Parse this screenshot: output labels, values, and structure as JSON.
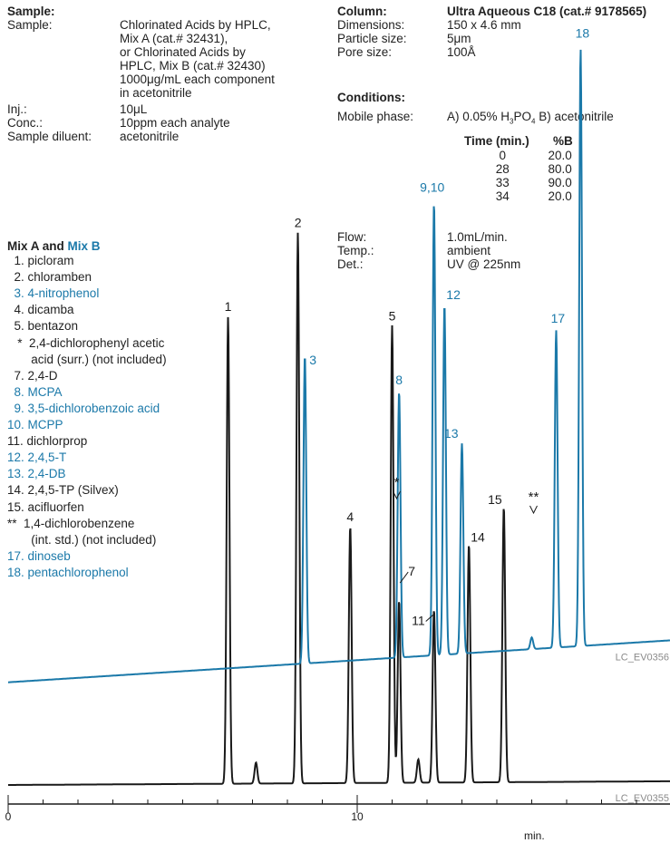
{
  "colors": {
    "mixA": "#1a1a1a",
    "mixB": "#1b79a9"
  },
  "sample": {
    "heading": "Sample:",
    "rows": [
      {
        "label": "Sample:",
        "value": "Chlorinated Acids by HPLC,\nMix A (cat.# 32431),\nor Chlorinated Acids by\nHPLC, Mix B (cat.# 32430)\n1000μg/mL each component\nin acetonitrile"
      },
      {
        "label": "Inj.:",
        "value": "10μL"
      },
      {
        "label": "Conc.:",
        "value": "10ppm each analyte"
      },
      {
        "label": "Sample diluent:",
        "value": "acetonitrile"
      }
    ]
  },
  "column": {
    "heading": "Column:",
    "name": "Ultra Aqueous C18 (cat.# 9178565)",
    "rows": [
      {
        "label": "Dimensions:",
        "value": "150 x 4.6 mm"
      },
      {
        "label": "Particle size:",
        "value": "5μm"
      },
      {
        "label": "Pore size:",
        "value": "100Å"
      }
    ]
  },
  "conditions": {
    "heading": "Conditions:",
    "mobile_phase_label": "Mobile phase:",
    "mobile_phase_value_a": "A) 0.05% H",
    "mobile_phase_sub1": "3",
    "mobile_phase_value_b": "PO",
    "mobile_phase_sub2": "4",
    "mobile_phase_value_c": " B) acetonitrile",
    "gradient_headers": [
      "Time (min.)",
      "%B"
    ],
    "gradient": [
      [
        "0",
        "20.0"
      ],
      [
        "28",
        "80.0"
      ],
      [
        "33",
        "90.0"
      ],
      [
        "34",
        "20.0"
      ]
    ],
    "rows": [
      {
        "label": "Flow:",
        "value": "1.0mL/min."
      },
      {
        "label": "Temp.:",
        "value": "ambient"
      },
      {
        "label": "Det.:",
        "value": "UV @ 225nm"
      }
    ]
  },
  "legend": {
    "title_a": "Mix A and ",
    "title_b": "Mix B",
    "items": [
      {
        "text": "  1. picloram",
        "mix": "A"
      },
      {
        "text": "  2. chloramben",
        "mix": "A"
      },
      {
        "text": "  3. 4-nitrophenol",
        "mix": "B"
      },
      {
        "text": "  4. dicamba",
        "mix": "A"
      },
      {
        "text": "  5. bentazon",
        "mix": "A"
      },
      {
        "text": "   *  2,4-dichlorophenyl acetic",
        "mix": "A"
      },
      {
        "text": "       acid (surr.) (not included)",
        "mix": "A"
      },
      {
        "text": "  7. 2,4-D",
        "mix": "A"
      },
      {
        "text": "  8. MCPA",
        "mix": "B"
      },
      {
        "text": "  9. 3,5-dichlorobenzoic acid",
        "mix": "B"
      },
      {
        "text": "10. MCPP",
        "mix": "B"
      },
      {
        "text": "11. dichlorprop",
        "mix": "A"
      },
      {
        "text": "12. 2,4,5-T",
        "mix": "B"
      },
      {
        "text": "13. 2,4-DB",
        "mix": "B"
      },
      {
        "text": "14. 2,4,5-TP (Silvex)",
        "mix": "A"
      },
      {
        "text": "15. acifluorfen",
        "mix": "A"
      },
      {
        "text": "**  1,4-dichlorobenzene",
        "mix": "A"
      },
      {
        "text": "       (int. std.) (not included)",
        "mix": "A"
      },
      {
        "text": "17. dinoseb",
        "mix": "B"
      },
      {
        "text": "18. pentachlorophenol",
        "mix": "B"
      }
    ]
  },
  "chart_data": {
    "type": "line",
    "xlabel": "min.",
    "xlim": [
      0,
      19
    ],
    "x_ticks": [
      {
        "value": 0,
        "label": "0"
      },
      {
        "value": 10,
        "label": "10"
      }
    ],
    "series": [
      {
        "name": "LC_EV0355",
        "mix": "A",
        "baseline": 0,
        "peaks": [
          {
            "label": "1",
            "rt": 6.3,
            "height": 1.0
          },
          {
            "label": "",
            "rt": 7.1,
            "height": 0.045
          },
          {
            "label": "2",
            "rt": 8.3,
            "height": 1.18
          },
          {
            "label": "4",
            "rt": 9.8,
            "height": 0.55
          },
          {
            "label": "5",
            "rt": 11.0,
            "height": 0.98
          },
          {
            "label": "7",
            "rt": 11.2,
            "height": 0.39
          },
          {
            "label": "",
            "rt": 11.75,
            "height": 0.05
          },
          {
            "label": "11",
            "rt": 12.2,
            "height": 0.37
          },
          {
            "label": "14",
            "rt": 13.2,
            "height": 0.51
          },
          {
            "label": "15",
            "rt": 14.2,
            "height": 0.59
          }
        ]
      },
      {
        "name": "LC_EV0356",
        "mix": "B",
        "baseline": 0.22,
        "peaks": [
          {
            "label": "3",
            "rt": 8.5,
            "height": 0.66
          },
          {
            "label": "8",
            "rt": 11.2,
            "height": 0.57
          },
          {
            "label": "9,10",
            "rt": 12.2,
            "height": 0.97
          },
          {
            "label": "12",
            "rt": 12.5,
            "height": 0.75
          },
          {
            "label": "13",
            "rt": 13.0,
            "height": 0.45
          },
          {
            "label": "",
            "rt": 15.0,
            "height": 0.025
          },
          {
            "label": "17",
            "rt": 15.7,
            "height": 0.68
          },
          {
            "label": "18",
            "rt": 16.4,
            "height": 1.28
          }
        ]
      }
    ],
    "annotations": [
      {
        "text": "*",
        "rt": 11.0,
        "mix": "A"
      },
      {
        "text": "**",
        "rt": 15.0,
        "mix": "A"
      }
    ]
  }
}
